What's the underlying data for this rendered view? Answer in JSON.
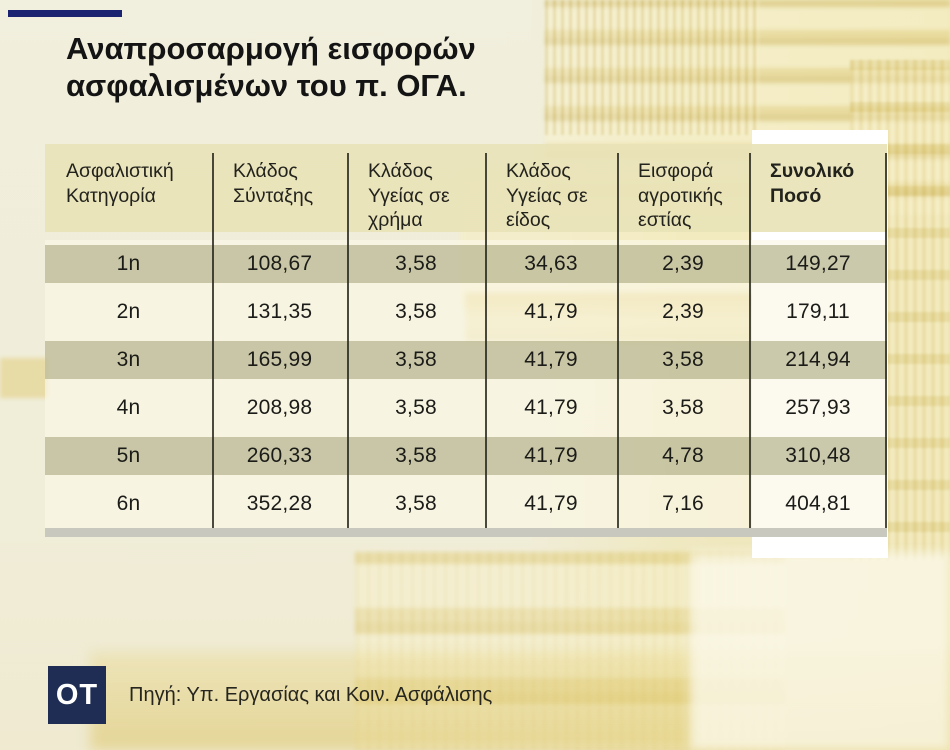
{
  "page": {
    "title_lines": [
      "Αναπροσαρμογή εισφορών",
      "ασφαλισμένων του π. ΟΓΑ."
    ],
    "source_label": "Πηγή: Υπ. Εργασίας και Κοιν. Ασφάλισης",
    "logo_text": "OT"
  },
  "colors": {
    "accent_navy": "#1b2471",
    "logo_navy": "#1f2d55",
    "table_header_khaki": "#e9e3b8",
    "odd_row_band": "#cac7a2",
    "total_column_highlight": "#ffffff",
    "bottom_divider_gray": "#c8c8be"
  },
  "chart_data": {
    "type": "table",
    "title": "Αναπροσαρμογή εισφορών ασφαλισμένων του π. ΟΓΑ.",
    "source": "Πηγή: Υπ. Εργασίας και Κοιν. Ασφάλισης",
    "columns": [
      "Ασφαλιστική Κατηγορία",
      "Κλάδος Σύνταξης",
      "Κλάδος Υγείας σε χρήμα",
      "Κλάδος Υγείας σε είδος",
      "Εισφορά αγροτικής εστίας",
      "Συνολικό Ποσό"
    ],
    "rows": [
      [
        "1n",
        "108,67",
        "3,58",
        "34,63",
        "2,39",
        "149,27"
      ],
      [
        "2n",
        "131,35",
        "3,58",
        "41,79",
        "2,39",
        "179,11"
      ],
      [
        "3n",
        "165,99",
        "3,58",
        "41,79",
        "3,58",
        "214,94"
      ],
      [
        "4n",
        "208,98",
        "3,58",
        "41,79",
        "3,58",
        "257,93"
      ],
      [
        "5n",
        "260,33",
        "3,58",
        "41,79",
        "4,78",
        "310,48"
      ],
      [
        "6n",
        "352,28",
        "3,58",
        "41,79",
        "7,16",
        "404,81"
      ]
    ],
    "highlighted_column": "Συνολικό Ποσό"
  }
}
